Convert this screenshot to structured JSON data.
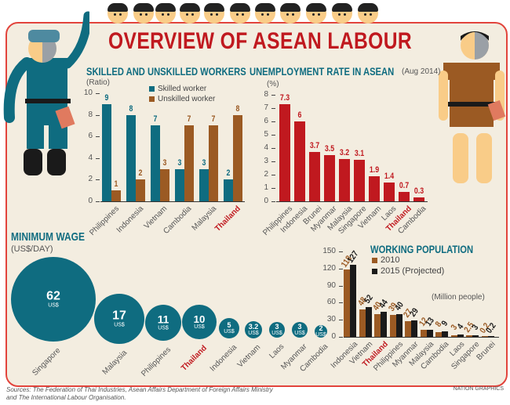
{
  "header": {
    "title": "OVERVIEW OF  ASEAN LABOUR",
    "faces": 11
  },
  "colors": {
    "teal": "#0f6c80",
    "brown": "#9b5a23",
    "red": "#c0191f",
    "black": "#1a1a1a",
    "panel_bg": "#f3ede0",
    "border": "#e2443c"
  },
  "chart_data": [
    {
      "id": "skilled",
      "type": "bar",
      "title": "SKILLED AND UNSKILLED WORKERS",
      "ylabel": "(Ratio)",
      "ylim": [
        0,
        10
      ],
      "yticks": [
        0,
        2,
        4,
        6,
        8,
        10
      ],
      "categories": [
        "Philippines",
        "Indonesia",
        "Vietnam",
        "Cambodia",
        "Malaysia",
        "Thailand"
      ],
      "series": [
        {
          "name": "Skilled worker",
          "color": "#0f6c80",
          "values": [
            9,
            8,
            7,
            3,
            3,
            2
          ]
        },
        {
          "name": "Unskilled worker",
          "color": "#9b5a23",
          "values": [
            1,
            2,
            3,
            7,
            7,
            8
          ]
        }
      ],
      "highlight": "Thailand",
      "legend_position": "top-right"
    },
    {
      "id": "unemployment",
      "type": "bar",
      "title": "UNEMPLOYMENT RATE IN ASEAN",
      "subtitle": "(Aug 2014)",
      "ylabel": "(%)",
      "ylim": [
        0,
        8
      ],
      "yticks": [
        0,
        1,
        2,
        3,
        4,
        5,
        6,
        7,
        8
      ],
      "categories": [
        "Philippines",
        "Indonesia",
        "Brunei",
        "Myanmar",
        "Malaysia",
        "Singapore",
        "Vietnam",
        "Laos",
        "Thailand",
        "Cambodia"
      ],
      "values": [
        7.3,
        6,
        3.7,
        3.5,
        3.2,
        3.1,
        1.9,
        1.4,
        0.7,
        0.3
      ],
      "labels": [
        "7.3",
        "6",
        "3.7",
        "3.5",
        "3.2",
        "3.1",
        "1.9",
        "1.4",
        "0.7",
        "0.3"
      ],
      "color": "#c0191f",
      "highlight": "Thailand"
    },
    {
      "id": "minwage",
      "type": "bubble",
      "title": "MINIMUM WAGE",
      "ylabel": "(US$/DAY)",
      "unit": "US$",
      "categories": [
        "Singapore",
        "Malaysia",
        "Philippines",
        "Thailand",
        "Indonesia",
        "Vietnam",
        "Laos",
        "Myanmar",
        "Cambodia"
      ],
      "values": [
        62,
        17,
        11,
        10,
        5,
        3.2,
        3,
        3,
        2
      ],
      "labels": [
        "62",
        "17",
        "11",
        "10",
        "5",
        "3.2",
        "3",
        "3",
        "2"
      ],
      "highlight": "Thailand"
    },
    {
      "id": "workingpop",
      "type": "bar",
      "title": "WORKING POPULATION",
      "unit_note": "(Million people)",
      "ylim": [
        0,
        150
      ],
      "yticks": [
        0,
        30,
        60,
        90,
        120,
        150
      ],
      "categories": [
        "Indonesia",
        "Vietnam",
        "Thailand",
        "Philippines",
        "Myanmar",
        "Malaysia",
        "Cambodia",
        "Laos",
        "Singapore",
        "Brunei"
      ],
      "series": [
        {
          "name": "2010",
          "color": "#9b5a23",
          "values": [
            118,
            48,
            40,
            39,
            27,
            12,
            8,
            3,
            2.5,
            0.2
          ],
          "labels": [
            "118",
            "48",
            "40",
            "39",
            "27",
            "12",
            "8",
            "3",
            "2.5",
            "0.2"
          ]
        },
        {
          "name": "2015 (Projected)",
          "color": "#1a1a1a",
          "values": [
            127,
            52,
            44,
            40,
            29,
            13,
            9,
            4,
            3,
            0.2
          ],
          "labels": [
            "127",
            "52",
            "44",
            "40",
            "29",
            "13",
            "9",
            "4",
            "3",
            "0.2"
          ]
        }
      ],
      "highlight": "Thailand",
      "legend_position": "top-right"
    }
  ],
  "footer": {
    "sources_line1": "Sources: The Federation of Thai Industries, Asean Affairs Department of Foreign Affairs Ministry",
    "sources_line2": "and The International Labour Organisation.",
    "credit": "NATION GRAPHICS"
  }
}
